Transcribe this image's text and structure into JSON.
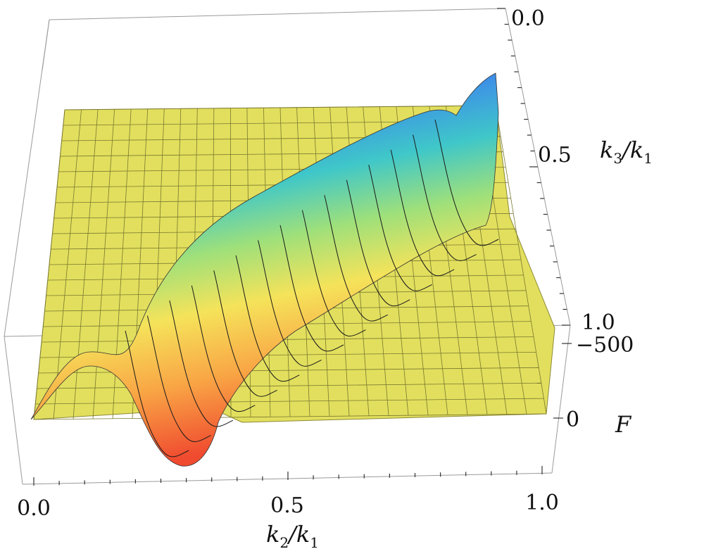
{
  "chart_data": {
    "type": "surface3d",
    "x_axis": {
      "variable": "k",
      "sub": "2",
      "denom": "k",
      "denom_sub": "1",
      "ticks": [
        "0.0",
        "0.5",
        "1.0"
      ],
      "range": [
        0,
        1
      ]
    },
    "y_axis": {
      "variable": "k",
      "sub": "3",
      "denom": "k",
      "denom_sub": "1",
      "ticks": [
        "0.0",
        "0.5",
        "1.0"
      ],
      "range": [
        0,
        1
      ]
    },
    "z_axis": {
      "label": "F",
      "ticks": [
        "−500",
        "0"
      ]
    },
    "surface_color": "#e2df5e",
    "mesh_color": "#222222",
    "ridge_colormap": [
      "#6a3de8",
      "#3d7ef0",
      "#3fc7c9",
      "#9fe07a",
      "#f5e35a",
      "#f9a645",
      "#f04a2f"
    ],
    "grid": true
  }
}
